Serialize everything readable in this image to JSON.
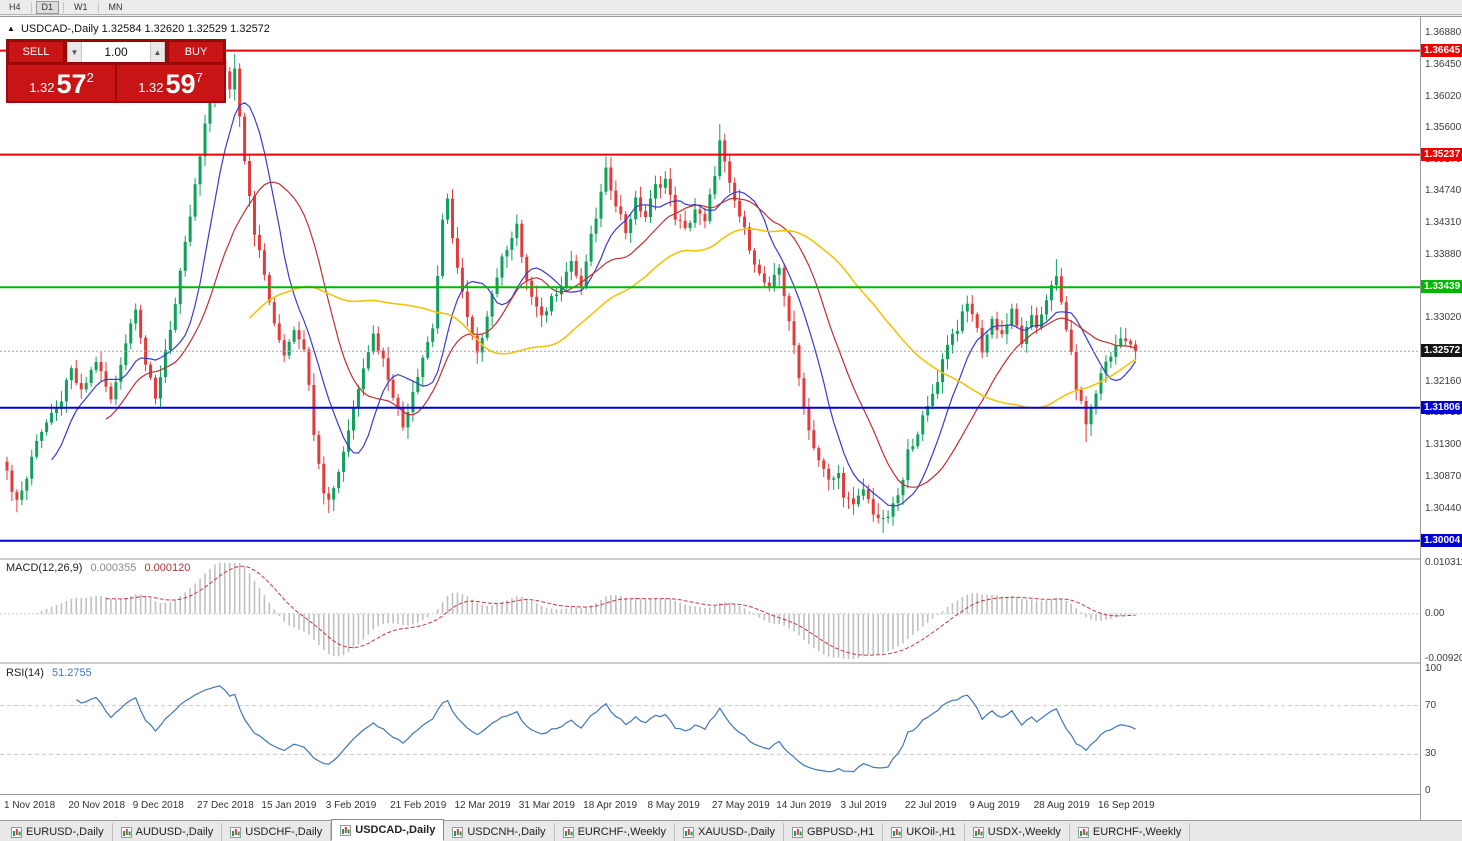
{
  "window": {
    "timeframes": [
      {
        "label": "H4",
        "active": false
      },
      {
        "label": "D1",
        "active": true
      },
      {
        "label": "W1",
        "active": false
      },
      {
        "label": "MN",
        "active": false
      }
    ]
  },
  "chart": {
    "title": {
      "collapse_icon": "▲",
      "symbol": "USDCAD-,Daily",
      "open": "1.32584",
      "high": "1.32620",
      "low": "1.32529",
      "close": "1.32572"
    },
    "trade_panel": {
      "sell_label": "SELL",
      "buy_label": "BUY",
      "volume": "1.00",
      "volume_down_icon": "▼",
      "volume_up_icon": "▲",
      "sell_price_big": "1.32",
      "sell_price_mid": "57",
      "sell_price_sup": "2",
      "buy_price_big": "1.32",
      "buy_price_mid": "59",
      "buy_price_sup": "7"
    },
    "levels": [
      {
        "price": 1.36645,
        "label": "1.36645",
        "color": "#ee0000"
      },
      {
        "price": 1.35237,
        "label": "1.35237",
        "color": "#ee0000"
      },
      {
        "price": 1.33439,
        "label": "1.33439",
        "color": "#00b800"
      },
      {
        "price": 1.31806,
        "label": "1.31806",
        "color": "#0000d8"
      },
      {
        "price": 1.30004,
        "label": "1.30004",
        "color": "#0000d8"
      }
    ],
    "current_price": {
      "value": 1.32572,
      "label": "1.32572",
      "tag_color": "#151515"
    },
    "axis_labels": [
      "1.36880",
      "1.36450",
      "1.36020",
      "1.35600",
      "1.35170",
      "1.34740",
      "1.34310",
      "1.33880",
      "1.33450",
      "1.33020",
      "1.32590",
      "1.32160",
      "1.31730",
      "1.31300",
      "1.30870",
      "1.30440",
      "1.30010"
    ]
  },
  "macd_panel": {
    "label": "MACD(12,26,9)",
    "value_main": "0.000355",
    "value_signal": "0.000120",
    "axis": [
      "0.010311",
      "0.00",
      "-0.009203"
    ]
  },
  "rsi_panel": {
    "label": "RSI(14)",
    "value": "51.2755",
    "axis": [
      "100",
      "70",
      "30",
      "0"
    ],
    "dashed_levels": [
      70,
      30
    ]
  },
  "time_axis": [
    "1 Nov 2018",
    "20 Nov 2018",
    "9 Dec 2018",
    "27 Dec 2018",
    "15 Jan 2019",
    "3 Feb 2019",
    "21 Feb 2019",
    "12 Mar 2019",
    "31 Mar 2019",
    "18 Apr 2019",
    "8 May 2019",
    "27 May 2019",
    "14 Jun 2019",
    "3 Jul 2019",
    "22 Jul 2019",
    "9 Aug 2019",
    "28 Aug 2019",
    "16 Sep 2019"
  ],
  "tabs": [
    {
      "label": "EURUSD-,Daily",
      "active": false
    },
    {
      "label": "AUDUSD-,Daily",
      "active": false
    },
    {
      "label": "USDCHF-,Daily",
      "active": false
    },
    {
      "label": "USDCAD-,Daily",
      "active": true
    },
    {
      "label": "USDCNH-,Daily",
      "active": false
    },
    {
      "label": "EURCHF-,Weekly",
      "active": false
    },
    {
      "label": "XAUUSD-,Daily",
      "active": false
    },
    {
      "label": "GBPUSD-,H1",
      "active": false
    },
    {
      "label": "UKOil-,H1",
      "active": false
    },
    {
      "label": "USDX-,Weekly",
      "active": false
    },
    {
      "label": "EURCHF-,Weekly",
      "active": false
    }
  ],
  "chart_data": {
    "type": "candlestick",
    "symbol": "USDCAD",
    "timeframe": "Daily",
    "bars_total": 229,
    "label_every_bars": 13,
    "last_close": 1.32572,
    "price_scale": {
      "top": 1.3702,
      "bottom": 1.2977
    },
    "up_color": "#0fa05a",
    "down_color": "#e23b3b",
    "price_path_anchors": [
      [
        0,
        1.309
      ],
      [
        2,
        1.3055
      ],
      [
        4,
        1.3085
      ],
      [
        6,
        1.314
      ],
      [
        8,
        1.316
      ],
      [
        10,
        1.3175
      ],
      [
        13,
        1.323
      ],
      [
        15,
        1.32
      ],
      [
        18,
        1.3245
      ],
      [
        21,
        1.319
      ],
      [
        24,
        1.327
      ],
      [
        26,
        1.332
      ],
      [
        28,
        1.324
      ],
      [
        30,
        1.319
      ],
      [
        32,
        1.326
      ],
      [
        34,
        1.332
      ],
      [
        36,
        1.34
      ],
      [
        38,
        1.348
      ],
      [
        40,
        1.356
      ],
      [
        42,
        1.363
      ],
      [
        43,
        1.365
      ],
      [
        45,
        1.3615
      ],
      [
        46,
        1.364
      ],
      [
        48,
        1.352
      ],
      [
        50,
        1.342
      ],
      [
        52,
        1.336
      ],
      [
        54,
        1.329
      ],
      [
        56,
        1.3255
      ],
      [
        58,
        1.329
      ],
      [
        60,
        1.3265
      ],
      [
        62,
        1.315
      ],
      [
        64,
        1.307
      ],
      [
        65,
        1.3055
      ],
      [
        67,
        1.3095
      ],
      [
        70,
        1.318
      ],
      [
        72,
        1.324
      ],
      [
        74,
        1.328
      ],
      [
        76,
        1.3245
      ],
      [
        78,
        1.32
      ],
      [
        80,
        1.3155
      ],
      [
        82,
        1.3205
      ],
      [
        84,
        1.325
      ],
      [
        86,
        1.329
      ],
      [
        88,
        1.343
      ],
      [
        89,
        1.346
      ],
      [
        91,
        1.337
      ],
      [
        93,
        1.33
      ],
      [
        95,
        1.325
      ],
      [
        97,
        1.331
      ],
      [
        99,
        1.336
      ],
      [
        101,
        1.34
      ],
      [
        103,
        1.343
      ],
      [
        104,
        1.338
      ],
      [
        106,
        1.333
      ],
      [
        108,
        1.33
      ],
      [
        110,
        1.333
      ],
      [
        112,
        1.335
      ],
      [
        114,
        1.338
      ],
      [
        116,
        1.334
      ],
      [
        117,
        1.338
      ],
      [
        119,
        1.344
      ],
      [
        121,
        1.35
      ],
      [
        123,
        1.346
      ],
      [
        125,
        1.342
      ],
      [
        127,
        1.346
      ],
      [
        129,
        1.344
      ],
      [
        131,
        1.348
      ],
      [
        133,
        1.349
      ],
      [
        135,
        1.344
      ],
      [
        137,
        1.342
      ],
      [
        139,
        1.345
      ],
      [
        141,
        1.343
      ],
      [
        143,
        1.35
      ],
      [
        144,
        1.354
      ],
      [
        146,
        1.348
      ],
      [
        148,
        1.344
      ],
      [
        150,
        1.34
      ],
      [
        152,
        1.336
      ],
      [
        154,
        1.334
      ],
      [
        156,
        1.337
      ],
      [
        158,
        1.33
      ],
      [
        160,
        1.322
      ],
      [
        162,
        1.315
      ],
      [
        164,
        1.311
      ],
      [
        166,
        1.308
      ],
      [
        168,
        1.309
      ],
      [
        169,
        1.3065
      ],
      [
        171,
        1.3045
      ],
      [
        173,
        1.307
      ],
      [
        175,
        1.304
      ],
      [
        177,
        1.3025
      ],
      [
        179,
        1.3045
      ],
      [
        181,
        1.308
      ],
      [
        182,
        1.312
      ],
      [
        184,
        1.315
      ],
      [
        186,
        1.318
      ],
      [
        188,
        1.322
      ],
      [
        190,
        1.327
      ],
      [
        192,
        1.329
      ],
      [
        194,
        1.332
      ],
      [
        195,
        1.331
      ],
      [
        197,
        1.326
      ],
      [
        199,
        1.33
      ],
      [
        201,
        1.328
      ],
      [
        203,
        1.331
      ],
      [
        205,
        1.327
      ],
      [
        207,
        1.33
      ],
      [
        208,
        1.329
      ],
      [
        210,
        1.333
      ],
      [
        212,
        1.3355
      ],
      [
        214,
        1.329
      ],
      [
        216,
        1.321
      ],
      [
        218,
        1.316
      ],
      [
        220,
        1.32
      ],
      [
        221,
        1.323
      ],
      [
        223,
        1.325
      ],
      [
        225,
        1.328
      ],
      [
        227,
        1.3262
      ],
      [
        228,
        1.32572
      ]
    ],
    "wick_spikes": {
      "2": {
        "low": 1.3039
      },
      "43": {
        "high": 1.3664
      },
      "46": {
        "high": 1.366
      },
      "65": {
        "low": 1.3038
      },
      "89": {
        "high": 1.347
      },
      "121": {
        "high": 1.3521
      },
      "144": {
        "high": 1.3565
      },
      "177": {
        "low": 1.3011
      },
      "212": {
        "high": 1.3382
      },
      "218": {
        "low": 1.3134
      }
    },
    "moving_averages": [
      {
        "period": 10,
        "color": "#3a3ad0"
      },
      {
        "period": 21,
        "color": "#c03030"
      },
      {
        "period": 50,
        "color": "#f2c40e"
      }
    ],
    "macd": {
      "fast": 12,
      "slow": 26,
      "signal": 9,
      "scale_top": 0.0103,
      "scale_bottom": -0.0092,
      "histogram_color": "#c0c0c0",
      "signal_color": "#c23b3b"
    },
    "rsi": {
      "period": 14,
      "scale_min": 0,
      "scale_max": 100,
      "color": "#3f76b8"
    }
  }
}
